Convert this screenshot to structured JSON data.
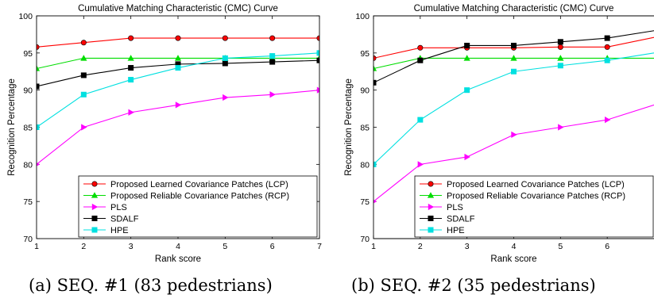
{
  "captions": [
    "(a) SEQ. #1 (83 pedestrians)",
    "(b) SEQ. #2 (35 pedestrians)"
  ],
  "chart_data": [
    {
      "type": "line",
      "title": "Cumulative Matching Characteristic (CMC) Curve",
      "xlabel": "Rank score",
      "ylabel": "Recognition Percentage",
      "xlim": [
        1,
        7
      ],
      "ylim": [
        70,
        100
      ],
      "xticks": [
        1,
        2,
        3,
        4,
        5,
        6,
        7
      ],
      "yticks": [
        70,
        75,
        80,
        85,
        90,
        95,
        100
      ],
      "grid": false,
      "legend_position": "bottom-right",
      "x": [
        1,
        2,
        3,
        4,
        5,
        6,
        7
      ],
      "series": [
        {
          "name": "Proposed Learned Covariance Patches (LCP)",
          "color": "#ff0000",
          "marker": "circle",
          "values": [
            95.8,
            96.4,
            97.0,
            97.0,
            97.0,
            97.0,
            97.0
          ]
        },
        {
          "name": "Proposed Reliable Covariance Patches (RCP)",
          "color": "#00dd00",
          "marker": "triangle-up",
          "values": [
            92.9,
            94.3,
            94.3,
            94.3,
            94.3,
            94.3,
            94.3
          ]
        },
        {
          "name": "PLS",
          "color": "#ff00ff",
          "marker": "triangle-right",
          "values": [
            80.0,
            85.0,
            87.0,
            88.0,
            89.0,
            89.4,
            90.0
          ]
        },
        {
          "name": "SDALF",
          "color": "#000000",
          "marker": "square",
          "values": [
            90.5,
            92.0,
            93.0,
            93.5,
            93.6,
            93.8,
            94.0
          ]
        },
        {
          "name": "HPE",
          "color": "#00e0e0",
          "marker": "square",
          "values": [
            85.0,
            89.4,
            91.4,
            93.0,
            94.3,
            94.6,
            95.0
          ]
        }
      ]
    },
    {
      "type": "line",
      "title": "Cumulative Matching Characteristic (CMC) Curve",
      "xlabel": "Rank score",
      "ylabel": "Recognition Percentage",
      "xlim": [
        1,
        7
      ],
      "ylim": [
        70,
        100
      ],
      "xticks": [
        1,
        2,
        3,
        4,
        5,
        6
      ],
      "yticks": [
        70,
        75,
        80,
        85,
        90,
        95,
        100
      ],
      "grid": false,
      "legend_position": "bottom-right",
      "x": [
        1,
        2,
        3,
        4,
        5,
        6,
        7
      ],
      "series": [
        {
          "name": "Proposed Learned Covariance Patches (LCP)",
          "color": "#ff0000",
          "marker": "circle",
          "values": [
            94.3,
            95.7,
            95.7,
            95.7,
            95.8,
            95.8,
            97.1
          ]
        },
        {
          "name": "Proposed Reliable Covariance Patches (RCP)",
          "color": "#00dd00",
          "marker": "triangle-up",
          "values": [
            92.9,
            94.3,
            94.3,
            94.3,
            94.3,
            94.3,
            94.3
          ]
        },
        {
          "name": "PLS",
          "color": "#ff00ff",
          "marker": "triangle-right",
          "values": [
            75.0,
            80.0,
            81.0,
            84.0,
            85.0,
            86.0,
            88.0
          ]
        },
        {
          "name": "SDALF",
          "color": "#000000",
          "marker": "square",
          "values": [
            91.0,
            94.0,
            96.0,
            96.0,
            96.5,
            97.0,
            98.0
          ]
        },
        {
          "name": "HPE",
          "color": "#00e0e0",
          "marker": "square",
          "values": [
            80.0,
            86.0,
            90.0,
            92.5,
            93.3,
            94.0,
            95.0
          ]
        }
      ]
    }
  ]
}
